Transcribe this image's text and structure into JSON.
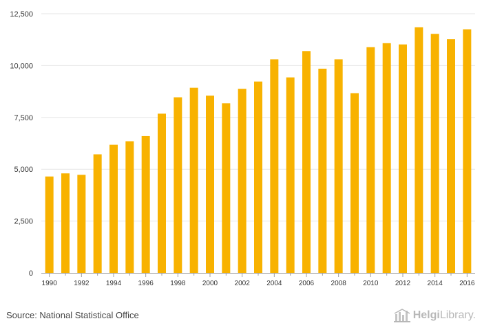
{
  "chart_data": {
    "type": "bar",
    "title": "",
    "xlabel": "",
    "ylabel": "",
    "ylim": [
      0,
      12500
    ],
    "yticks": [
      0,
      2500,
      5000,
      7500,
      10000,
      12500
    ],
    "ytick_labels": [
      "0",
      "2,500",
      "5,000",
      "7,500",
      "10,000",
      "12,500"
    ],
    "categories": [
      "1990",
      "1991",
      "1992",
      "1993",
      "1994",
      "1995",
      "1996",
      "1997",
      "1998",
      "1999",
      "2000",
      "2001",
      "2002",
      "2003",
      "2004",
      "2005",
      "2006",
      "2007",
      "2008",
      "2009",
      "2010",
      "2011",
      "2012",
      "2013",
      "2014",
      "2015",
      "2016"
    ],
    "values": [
      4650,
      4800,
      4730,
      5720,
      6180,
      6350,
      6600,
      7680,
      8470,
      8930,
      8550,
      8180,
      8880,
      9230,
      10300,
      9430,
      10700,
      9850,
      10300,
      8670,
      10890,
      11080,
      11020,
      11850,
      11530,
      11270,
      11750
    ],
    "x_tick_labels": [
      "1990",
      "1992",
      "1994",
      "1996",
      "1998",
      "2000",
      "2002",
      "2004",
      "2006",
      "2008",
      "2010",
      "2012",
      "2014",
      "2016"
    ],
    "colors": {
      "bar": "#f8b200",
      "grid": "#e6e6e6",
      "axis": "#9e9e9e"
    }
  },
  "footer": {
    "source": "Source: National Statistical Office",
    "brand_part1": "Helgi",
    "brand_part2": "Library."
  }
}
